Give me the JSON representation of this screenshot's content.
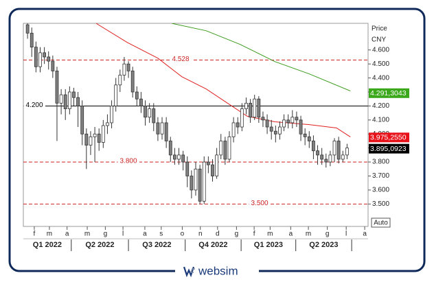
{
  "chart_data": {
    "type": "candlestick",
    "y_axis_title": "Price",
    "currency": "CNY",
    "open": [
      4.78,
      4.72,
      4.62,
      4.48,
      4.58,
      4.55,
      4.52,
      4.45,
      4.22,
      4.28,
      4.18,
      4.3,
      4.26,
      4.2,
      4.0,
      3.92,
      3.98,
      4.0,
      3.94,
      4.06,
      4.08,
      4.2,
      4.35,
      4.42,
      4.5,
      4.45,
      4.3,
      4.25,
      4.2,
      4.12,
      4.18,
      4.08,
      4.0,
      4.08,
      3.95,
      3.85,
      3.82,
      3.85,
      3.8,
      3.7,
      3.6,
      3.75,
      3.52,
      3.8,
      3.78,
      3.7,
      3.85,
      3.95,
      3.82,
      3.98,
      4.08,
      4.05,
      4.18,
      4.22,
      4.12,
      4.25,
      4.12,
      4.1,
      4.05,
      4.02,
      4.0,
      4.05,
      4.1,
      4.08,
      4.12,
      4.1,
      4.0,
      3.98,
      3.95,
      3.88,
      3.85,
      3.82,
      3.8,
      3.85,
      3.95,
      3.82,
      3.85
    ],
    "high": [
      4.8,
      4.76,
      4.66,
      4.62,
      4.62,
      4.59,
      4.56,
      4.48,
      4.32,
      4.32,
      4.34,
      4.33,
      4.3,
      4.24,
      4.04,
      4.02,
      4.05,
      4.04,
      4.1,
      4.14,
      4.24,
      4.4,
      4.46,
      4.55,
      4.52,
      4.48,
      4.34,
      4.3,
      4.24,
      4.22,
      4.22,
      4.12,
      4.12,
      4.12,
      3.98,
      3.9,
      3.9,
      3.88,
      3.84,
      3.74,
      3.8,
      3.78,
      3.84,
      3.84,
      3.82,
      3.9,
      4.0,
      3.98,
      4.02,
      4.12,
      4.12,
      4.22,
      4.26,
      4.25,
      4.28,
      4.27,
      4.16,
      4.14,
      4.1,
      4.06,
      4.09,
      4.14,
      4.14,
      4.17,
      4.16,
      4.13,
      4.04,
      4.02,
      3.99,
      3.92,
      3.9,
      3.86,
      3.88,
      3.97,
      3.98,
      3.88,
      3.93
    ],
    "low": [
      4.68,
      4.55,
      4.44,
      4.44,
      4.5,
      4.46,
      4.4,
      3.95,
      4.14,
      4.1,
      4.14,
      4.2,
      4.05,
      3.92,
      3.75,
      3.85,
      3.8,
      3.88,
      3.9,
      4.0,
      4.04,
      4.16,
      4.3,
      4.38,
      4.4,
      4.26,
      4.2,
      4.15,
      4.06,
      4.08,
      4.02,
      3.95,
      3.96,
      3.9,
      3.8,
      3.78,
      3.78,
      3.74,
      3.62,
      3.54,
      3.56,
      3.5,
      3.5,
      3.72,
      3.66,
      3.68,
      3.82,
      3.78,
      3.8,
      3.94,
      4.0,
      4.02,
      4.14,
      4.08,
      4.1,
      4.08,
      4.05,
      4.0,
      3.96,
      3.94,
      3.96,
      4.02,
      4.04,
      4.04,
      4.05,
      3.95,
      3.92,
      3.9,
      3.82,
      3.78,
      3.78,
      3.76,
      3.77,
      3.8,
      3.79,
      3.8,
      3.82
    ],
    "close": [
      4.72,
      4.62,
      4.48,
      4.58,
      4.55,
      4.52,
      4.45,
      4.22,
      4.28,
      4.18,
      4.3,
      4.26,
      4.2,
      4.0,
      3.92,
      3.98,
      4.0,
      3.94,
      4.06,
      4.08,
      4.2,
      4.35,
      4.42,
      4.5,
      4.45,
      4.3,
      4.25,
      4.2,
      4.12,
      4.18,
      4.08,
      4.0,
      4.08,
      3.95,
      3.85,
      3.82,
      3.85,
      3.8,
      3.7,
      3.6,
      3.75,
      3.52,
      3.8,
      3.78,
      3.7,
      3.85,
      3.95,
      3.82,
      3.98,
      4.08,
      4.05,
      4.18,
      4.22,
      4.12,
      4.25,
      4.12,
      4.1,
      4.05,
      4.02,
      4.0,
      4.05,
      4.1,
      4.08,
      4.12,
      4.1,
      4.0,
      3.98,
      3.95,
      3.88,
      3.85,
      3.82,
      3.8,
      3.85,
      3.95,
      3.82,
      3.85,
      3.9
    ],
    "up_color": "#ffffff",
    "down_color": "#808080",
    "xlim": [
      -1,
      81
    ],
    "xticks": [
      {
        "value": 1.6,
        "label": "f"
      },
      {
        "value": 5.2,
        "label": "m"
      },
      {
        "value": 9.4,
        "label": "a"
      },
      {
        "value": 14.2,
        "label": "m"
      },
      {
        "value": 18.5,
        "label": "g"
      },
      {
        "value": 22.7,
        "label": "l"
      },
      {
        "value": 27.9,
        "label": "a"
      },
      {
        "value": 31.8,
        "label": "s"
      },
      {
        "value": 36.8,
        "label": "o"
      },
      {
        "value": 41.1,
        "label": "n"
      },
      {
        "value": 45.2,
        "label": "d"
      },
      {
        "value": 49.7,
        "label": "g"
      },
      {
        "value": 53.9,
        "label": "f"
      },
      {
        "value": 57.7,
        "label": "m"
      },
      {
        "value": 62.6,
        "label": "a"
      },
      {
        "value": 66.8,
        "label": "m"
      },
      {
        "value": 71.3,
        "label": "g"
      },
      {
        "value": 75.8,
        "label": "l"
      },
      {
        "value": 80.2,
        "label": "a"
      }
    ],
    "ylim": [
      3.34,
      4.79
    ],
    "yticks": [
      {
        "value": 3.5,
        "label": "3.500"
      },
      {
        "value": 3.6,
        "label": "3.600"
      },
      {
        "value": 3.7,
        "label": "3.700"
      },
      {
        "value": 3.8,
        "label": "3.800"
      },
      {
        "value": 3.9,
        "label": "3.900"
      },
      {
        "value": 4.0,
        "label": "4.000"
      },
      {
        "value": 4.1,
        "label": "4.100"
      },
      {
        "value": 4.2,
        "label": "4.200"
      },
      {
        "value": 4.3,
        "label": "4.300"
      },
      {
        "value": 4.4,
        "label": "4.400"
      },
      {
        "value": 4.5,
        "label": "4.500"
      },
      {
        "value": 4.6,
        "label": "4.600"
      }
    ],
    "moving_averages": [
      {
        "color": "#e02020",
        "x": [
          16.3,
          23.7,
          31.0,
          36.7,
          42.5,
          47.4,
          52.3,
          58.8,
          67.0,
          73.5,
          76.8
        ],
        "values": [
          4.79,
          4.654,
          4.541,
          4.409,
          4.321,
          4.223,
          4.126,
          4.087,
          4.067,
          4.043,
          3.979
        ]
      },
      {
        "color": "#3a9a1a",
        "x": [
          34.3,
          42.5,
          50.6,
          58.8,
          67.0,
          76.8
        ],
        "values": [
          4.79,
          4.737,
          4.639,
          4.517,
          4.429,
          4.307
        ]
      }
    ],
    "levels": [
      {
        "value": 4.528,
        "label": "4.528",
        "color": "#cc2222",
        "dashed": true
      },
      {
        "value": 4.2,
        "label": "4.200",
        "color": "#000000",
        "dashed": false
      },
      {
        "value": 3.8,
        "label": "3.800",
        "color": "#cc2222",
        "dashed": true
      },
      {
        "value": 3.5,
        "label": "3.500",
        "color": "#cc2222",
        "dashed": true
      }
    ],
    "price_labels": [
      {
        "value": 4.2913043,
        "label": "4.291,3043",
        "color": "#3aa81a"
      },
      {
        "value": 3.975255,
        "label": "3.975,2550",
        "color": "#e8121a"
      },
      {
        "value": 3.8950923,
        "label": "3.895,0923",
        "color": "#000000"
      }
    ],
    "quarters": {
      "labels": [
        "Q1 2022",
        "Q2 2022",
        "Q3 2022",
        "Q4 2022",
        "Q1 2023",
        "Q2 2023"
      ],
      "edges": [
        -1,
        10.4,
        24.0,
        37.5,
        50.8,
        63.8,
        77.1
      ]
    },
    "auto_label": "Auto"
  },
  "brand": "websim"
}
